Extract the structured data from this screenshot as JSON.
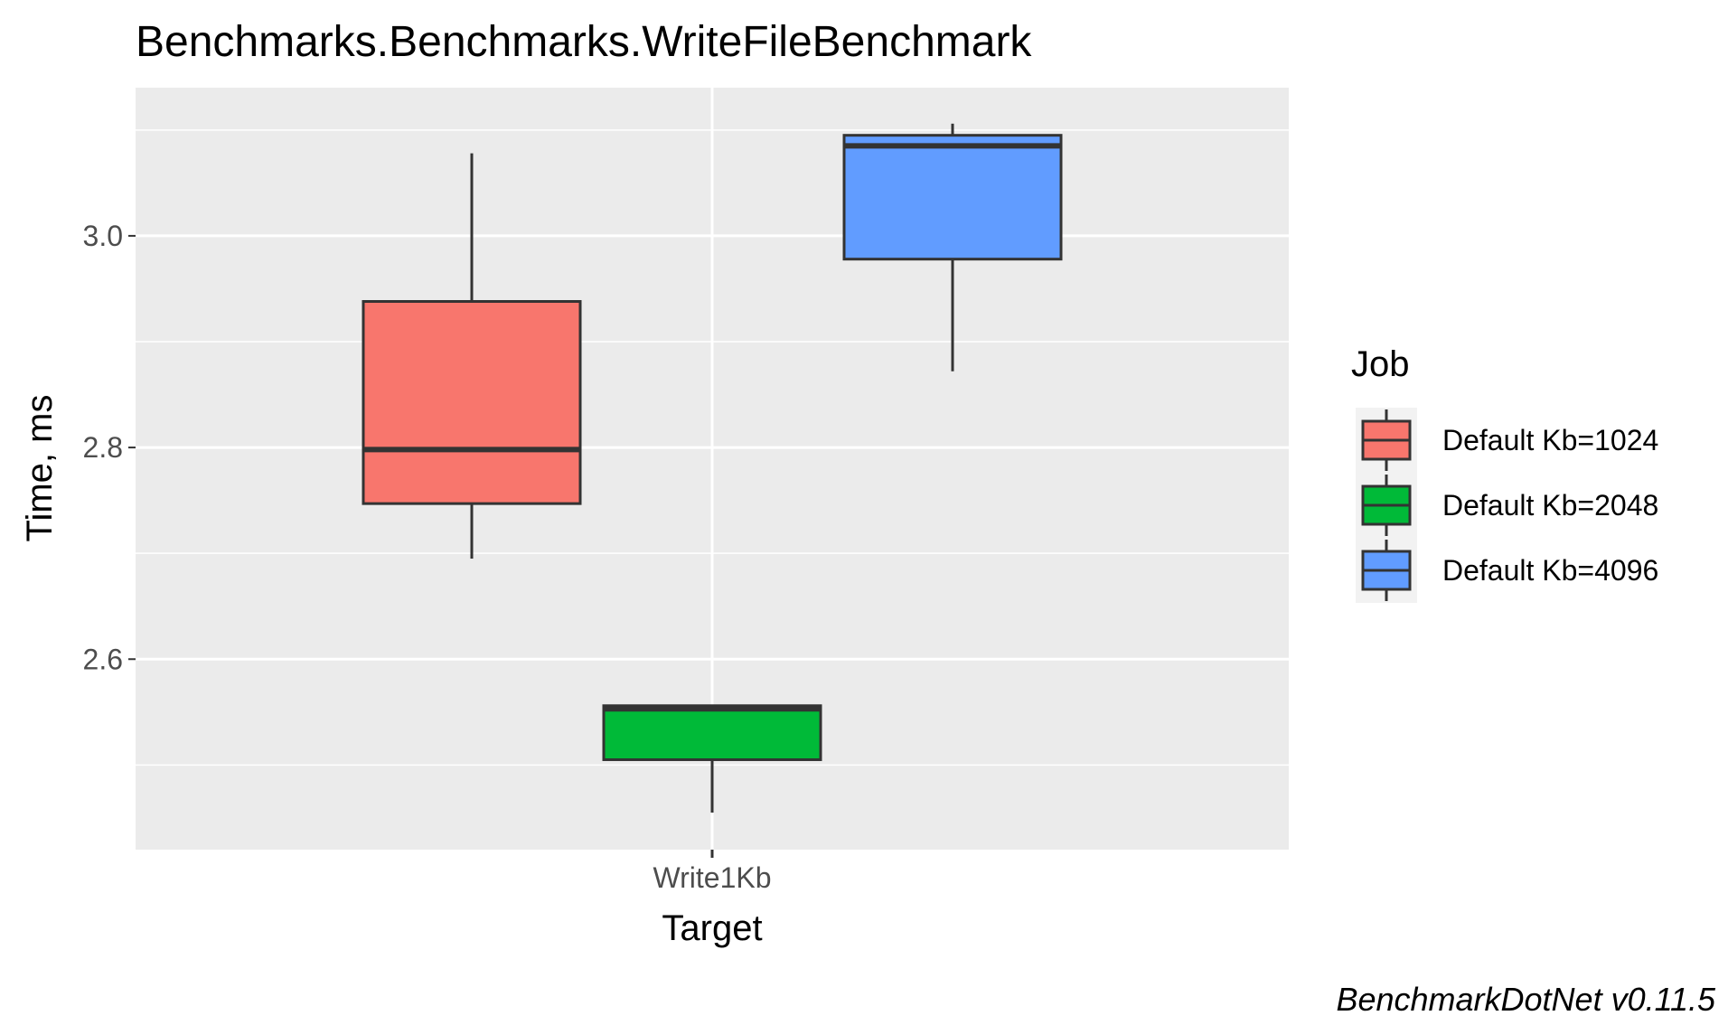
{
  "chart_data": {
    "type": "boxplot",
    "title": "Benchmarks.Benchmarks.WriteFileBenchmark",
    "xlabel": "Target",
    "ylabel": "Time, ms",
    "categories": [
      "Write1Kb"
    ],
    "ylim": [
      2.42,
      3.14
    ],
    "yticks": [
      2.6,
      2.8,
      3.0
    ],
    "ytick_labels": [
      "2.6",
      "2.8",
      "3.0"
    ],
    "grid": true,
    "legend": {
      "title": "Job",
      "position": "right"
    },
    "series": [
      {
        "name": "Default Kb=1024",
        "color": "#F8766D",
        "category": "Write1Kb",
        "whisker_low": 2.695,
        "q1": 2.747,
        "median": 2.798,
        "q3": 2.938,
        "whisker_high": 3.078
      },
      {
        "name": "Default Kb=2048",
        "color": "#00BA38",
        "category": "Write1Kb",
        "whisker_low": 2.455,
        "q1": 2.505,
        "median": 2.553,
        "q3": 2.556,
        "whisker_high": 2.556
      },
      {
        "name": "Default Kb=4096",
        "color": "#619CFF",
        "category": "Write1Kb",
        "whisker_low": 2.872,
        "q1": 2.978,
        "median": 3.085,
        "q3": 3.095,
        "whisker_high": 3.106
      }
    ],
    "caption": "BenchmarkDotNet v0.11.5"
  }
}
